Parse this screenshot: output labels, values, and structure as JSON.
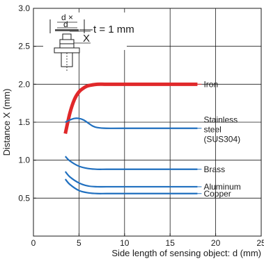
{
  "chart_data": {
    "type": "line",
    "xlabel": "Side length of sensing object: d (mm)",
    "ylabel": "Distance X (mm)",
    "xlim": [
      0,
      25
    ],
    "ylim": [
      0,
      3.0
    ],
    "xticks": [
      "0",
      "5",
      "10",
      "15",
      "20",
      "25"
    ],
    "yticks": [
      "0.5",
      "1.0",
      "1.5",
      "2.0",
      "2.5",
      "3.0"
    ],
    "grid": true,
    "annotation": {
      "thickness_text": "t = 1 mm",
      "d_label": "d",
      "d_label_2": "d",
      "cross_label": "×",
      "x_label": "X"
    },
    "series": [
      {
        "name": "Iron",
        "label_lines": [
          "Iron"
        ],
        "color": "#e0282a",
        "x": [
          3.5,
          4.0,
          4.5,
          5.0,
          5.5,
          6.0,
          7.0,
          8.0,
          10.0,
          14.0,
          18.0
        ],
        "y": [
          1.35,
          1.62,
          1.8,
          1.9,
          1.95,
          1.98,
          2.0,
          2.0,
          2.0,
          2.0,
          2.0
        ]
      },
      {
        "name": "Stainless steel (SUS304)",
        "label_lines": [
          "Stainless",
          "steel",
          "(SUS304)"
        ],
        "color": "#1f6fbf",
        "x": [
          3.5,
          4.0,
          4.5,
          5.0,
          5.5,
          6.0,
          6.5,
          7.0,
          8.0,
          10.0,
          18.0
        ],
        "y": [
          1.5,
          1.53,
          1.55,
          1.55,
          1.53,
          1.49,
          1.45,
          1.43,
          1.42,
          1.42,
          1.42
        ]
      },
      {
        "name": "Brass",
        "label_lines": [
          "Brass"
        ],
        "color": "#1f6fbf",
        "x": [
          3.5,
          4.0,
          5.0,
          6.0,
          7.0,
          8.0,
          10.0,
          18.0
        ],
        "y": [
          1.05,
          0.99,
          0.92,
          0.89,
          0.88,
          0.88,
          0.88,
          0.88
        ]
      },
      {
        "name": "Aluminum",
        "label_lines": [
          "Aluminum"
        ],
        "color": "#1f6fbf",
        "x": [
          3.5,
          4.0,
          5.0,
          6.0,
          7.0,
          8.0,
          10.0,
          18.0
        ],
        "y": [
          0.85,
          0.78,
          0.7,
          0.66,
          0.65,
          0.65,
          0.65,
          0.65
        ]
      },
      {
        "name": "Copper",
        "label_lines": [
          "Copper"
        ],
        "color": "#1f6fbf",
        "x": [
          3.5,
          4.0,
          5.0,
          6.0,
          7.0,
          8.0,
          10.0,
          18.0
        ],
        "y": [
          0.75,
          0.68,
          0.6,
          0.57,
          0.56,
          0.56,
          0.56,
          0.56
        ]
      }
    ]
  }
}
